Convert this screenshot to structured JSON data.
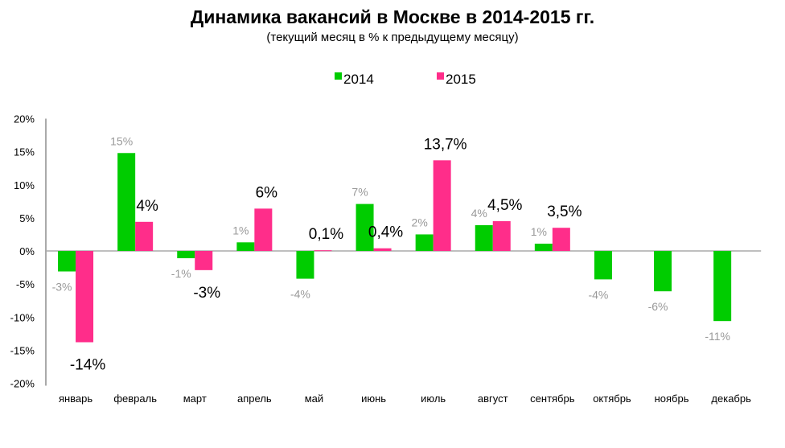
{
  "chart_data": {
    "type": "bar",
    "title": "Динамика вакансий в Москве в 2014-2015 гг.",
    "subtitle": "(текущий месяц в % к предыдущему месяцу)",
    "categories": [
      "январь",
      "февраль",
      "март",
      "апрель",
      "май",
      "июнь",
      "июль",
      "август",
      "сентябрь",
      "октябрь",
      "ноябрь",
      "декабрь"
    ],
    "ylim": [
      -20,
      20
    ],
    "yticks": [
      -20,
      -15,
      -10,
      -5,
      0,
      5,
      10,
      15,
      20
    ],
    "ytick_labels": [
      "-20%",
      "-15%",
      "-10%",
      "-5%",
      "0%",
      "5%",
      "10%",
      "15%",
      "20%"
    ],
    "grid": false,
    "legend": "top",
    "series": [
      {
        "name": "2014",
        "color": "#00cc00",
        "values": [
          -3.1,
          14.8,
          -1.1,
          1.3,
          -4.2,
          7.1,
          2.5,
          3.9,
          1.1,
          -4.3,
          -6.1,
          -10.6
        ],
        "labels": [
          "-3%",
          "15%",
          "-1%",
          "1%",
          "-4%",
          "7%",
          "2%",
          "4%",
          "1%",
          "-4%",
          "-6%",
          "-11%"
        ]
      },
      {
        "name": "2015",
        "color": "#ff2d8a",
        "values": [
          -13.8,
          4.4,
          -2.9,
          6.4,
          0.1,
          0.4,
          13.7,
          4.5,
          3.5,
          null,
          null,
          null
        ],
        "labels": [
          "-14%",
          "4%",
          "-3%",
          "6%",
          "0,1%",
          "0,4%",
          "13,7%",
          "4,5%",
          "3,5%",
          null,
          null,
          null
        ]
      }
    ]
  }
}
